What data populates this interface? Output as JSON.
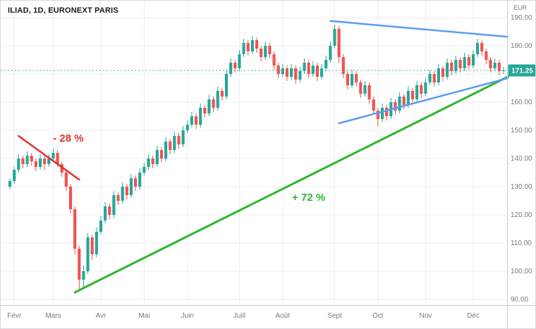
{
  "header": {
    "symbol_title": "ILIAD, 1D, EURONEXT PARIS",
    "currency_label": "EUR"
  },
  "colors": {
    "background": "#ffffff",
    "up": "#26a69a",
    "down": "#ef5350",
    "red": "#e03131",
    "green": "#2db52d",
    "blue": "#5b9cf6",
    "grid": "#ebedf0",
    "axis_text": "#787b86",
    "axis_line": "#c7cbd1",
    "last_price_bg": "#26a69a",
    "last_price_text": "#ffffff"
  },
  "chart_data": {
    "type": "candlestick",
    "symbol": "ILIAD",
    "interval": "1D",
    "exchange": "EURONEXT PARIS",
    "currency": "EUR",
    "last_price": 171.25,
    "last_price_label": "171.25",
    "y_axis": {
      "min": 88,
      "max": 193.5,
      "ticks": [
        {
          "value": 190,
          "label": "190.00"
        },
        {
          "value": 180,
          "label": "180.00"
        },
        {
          "value": 170,
          "label": "170.00"
        },
        {
          "value": 160,
          "label": "160.00"
        },
        {
          "value": 150,
          "label": "150.00"
        },
        {
          "value": 140,
          "label": "140.00"
        },
        {
          "value": 130,
          "label": "130.00"
        },
        {
          "value": 120,
          "label": "120.00"
        },
        {
          "value": 110,
          "label": "110.00"
        },
        {
          "value": 100,
          "label": "100.00"
        },
        {
          "value": 90,
          "label": "90.00"
        }
      ]
    },
    "x_axis": {
      "months": [
        {
          "label": "Févr",
          "index": 1
        },
        {
          "label": "Mars",
          "index": 10
        },
        {
          "label": "Avr",
          "index": 21
        },
        {
          "label": "Mai",
          "index": 31
        },
        {
          "label": "Juin",
          "index": 41
        },
        {
          "label": "Juill",
          "index": 53
        },
        {
          "label": "Août",
          "index": 63
        },
        {
          "label": "Sept",
          "index": 75
        },
        {
          "label": "Oct",
          "index": 85
        },
        {
          "label": "Nov",
          "index": 96
        },
        {
          "label": "Déc",
          "index": 107
        }
      ]
    },
    "candles": [
      [
        130,
        133,
        129,
        132
      ],
      [
        132,
        137,
        131,
        136
      ],
      [
        136,
        141.5,
        135,
        140
      ],
      [
        140,
        141,
        136.5,
        138
      ],
      [
        138,
        142.5,
        137,
        141
      ],
      [
        141,
        142,
        137.5,
        139
      ],
      [
        139,
        140,
        135.5,
        137
      ],
      [
        137,
        141.5,
        136,
        140
      ],
      [
        140,
        141,
        136,
        138
      ],
      [
        138,
        141.5,
        137,
        140
      ],
      [
        140,
        143.5,
        139,
        142
      ],
      [
        142,
        143,
        137,
        138
      ],
      [
        138,
        139,
        133.5,
        135
      ],
      [
        135,
        136,
        128.5,
        130
      ],
      [
        130,
        131,
        120.5,
        122
      ],
      [
        122,
        123,
        106,
        108
      ],
      [
        108,
        109,
        93,
        97
      ],
      [
        97,
        102,
        94.5,
        100
      ],
      [
        100,
        113.5,
        99,
        112
      ],
      [
        112,
        113,
        104,
        106
      ],
      [
        106,
        115.5,
        105,
        114
      ],
      [
        114,
        119.5,
        113,
        118
      ],
      [
        118,
        124.5,
        117,
        123
      ],
      [
        123,
        124,
        118.5,
        120
      ],
      [
        120,
        128.5,
        119,
        127
      ],
      [
        127,
        128,
        123.5,
        125
      ],
      [
        125,
        131.5,
        124,
        130
      ],
      [
        130,
        131,
        125.5,
        127
      ],
      [
        127,
        134.5,
        126,
        133
      ],
      [
        133,
        134,
        128.5,
        130
      ],
      [
        130,
        136.5,
        129,
        135
      ],
      [
        135,
        138.5,
        134,
        137
      ],
      [
        137,
        141.5,
        136,
        140
      ],
      [
        140,
        141,
        136.5,
        138
      ],
      [
        138,
        144.5,
        137,
        143
      ],
      [
        143,
        144,
        138.5,
        140
      ],
      [
        140,
        147.5,
        139,
        146
      ],
      [
        146,
        147,
        141.5,
        143
      ],
      [
        143,
        149.5,
        142,
        148
      ],
      [
        148,
        149,
        143.5,
        145
      ],
      [
        145,
        151.5,
        144,
        150
      ],
      [
        150,
        153.5,
        149,
        152
      ],
      [
        152,
        156.5,
        151,
        155
      ],
      [
        155,
        156,
        150.5,
        152
      ],
      [
        152,
        159.5,
        151,
        158
      ],
      [
        158,
        159,
        154.5,
        156
      ],
      [
        156,
        162.5,
        155,
        161
      ],
      [
        161,
        162,
        156.5,
        158
      ],
      [
        158,
        165.5,
        157,
        164
      ],
      [
        164,
        165,
        160.5,
        162
      ],
      [
        162,
        171.5,
        161,
        170
      ],
      [
        170,
        175.5,
        169,
        174
      ],
      [
        174,
        175,
        170.5,
        172
      ],
      [
        172,
        178.5,
        171,
        177
      ],
      [
        177,
        182.5,
        176,
        181
      ],
      [
        181,
        182,
        176.5,
        178
      ],
      [
        178,
        183.5,
        177,
        182
      ],
      [
        182,
        183,
        177.5,
        179
      ],
      [
        179,
        180,
        174.5,
        176
      ],
      [
        176,
        181.5,
        175,
        180
      ],
      [
        180,
        181,
        175.5,
        177
      ],
      [
        177,
        178,
        171.5,
        173
      ],
      [
        173,
        174,
        168.5,
        170
      ],
      [
        170,
        173.5,
        169,
        172
      ],
      [
        172,
        173,
        167.5,
        169
      ],
      [
        169,
        173.5,
        168,
        172
      ],
      [
        172,
        173,
        166.5,
        168
      ],
      [
        168,
        172.5,
        167,
        171
      ],
      [
        171,
        175.5,
        170,
        174
      ],
      [
        174,
        175,
        168.5,
        170
      ],
      [
        170,
        174.5,
        169,
        173
      ],
      [
        173,
        174,
        167.5,
        169
      ],
      [
        169,
        173.5,
        168,
        172
      ],
      [
        172,
        176.5,
        171,
        175
      ],
      [
        175,
        181.5,
        174,
        180
      ],
      [
        180,
        187.5,
        179,
        186
      ],
      [
        186,
        187,
        174,
        176
      ],
      [
        176,
        177,
        168.5,
        170
      ],
      [
        170,
        171,
        164.5,
        166
      ],
      [
        166,
        171.5,
        165,
        170
      ],
      [
        170,
        171,
        165.5,
        167
      ],
      [
        167,
        168,
        161.5,
        163
      ],
      [
        163,
        167.5,
        162,
        166
      ],
      [
        166,
        167,
        159.5,
        161
      ],
      [
        161,
        162,
        155.5,
        157
      ],
      [
        157,
        158,
        151.5,
        154
      ],
      [
        154,
        159.5,
        153,
        158
      ],
      [
        158,
        159,
        153.5,
        155
      ],
      [
        155,
        161.5,
        154,
        160
      ],
      [
        160,
        161,
        155.5,
        157
      ],
      [
        157,
        163.5,
        156,
        162
      ],
      [
        162,
        163,
        157.5,
        159
      ],
      [
        159,
        165.5,
        158,
        164
      ],
      [
        164,
        165,
        159.5,
        161
      ],
      [
        161,
        167.5,
        160,
        166
      ],
      [
        166,
        167,
        161.5,
        163
      ],
      [
        163,
        168.5,
        162,
        167
      ],
      [
        167,
        171.5,
        166,
        170
      ],
      [
        170,
        171,
        165.5,
        167
      ],
      [
        167,
        173.5,
        166,
        172
      ],
      [
        172,
        173,
        167.5,
        169
      ],
      [
        169,
        175.5,
        168,
        174
      ],
      [
        174,
        175,
        169.5,
        171
      ],
      [
        171,
        176.5,
        170,
        175
      ],
      [
        175,
        176,
        170.5,
        172
      ],
      [
        172,
        177.5,
        171,
        176
      ],
      [
        176,
        177,
        171.5,
        173
      ],
      [
        173,
        178.5,
        172,
        177
      ],
      [
        177,
        182.5,
        176,
        181
      ],
      [
        181,
        182,
        176.5,
        178
      ],
      [
        178,
        179,
        173.5,
        175
      ],
      [
        175,
        176,
        170.5,
        172
      ],
      [
        172,
        175.5,
        171,
        174
      ],
      [
        174,
        175,
        169.5,
        171
      ],
      [
        171,
        172.5,
        170,
        171.25
      ]
    ],
    "annotations": {
      "trendlines": [
        {
          "name": "decline-trendline",
          "color_key": "red",
          "from": [
            2.5,
            148
          ],
          "to": [
            15.5,
            132.5
          ],
          "width": 2.5
        },
        {
          "name": "rally-trendline",
          "color_key": "green",
          "from": [
            15.5,
            92.5
          ],
          "to": [
            114.5,
            169
          ],
          "width": 3
        },
        {
          "name": "triangle-upper-trendline",
          "color_key": "blue",
          "from": [
            74.5,
            188.8
          ],
          "to": [
            114.5,
            183.2
          ],
          "width": 2.5
        },
        {
          "name": "triangle-lower-trendline",
          "color_key": "blue",
          "from": [
            76.5,
            152.5
          ],
          "to": [
            114.5,
            168.5
          ],
          "width": 2.5
        }
      ],
      "labels": [
        {
          "name": "decline-percent-label",
          "text": "- 28 %",
          "at": [
            13.5,
            146
          ],
          "color_key": "red"
        },
        {
          "name": "rally-percent-label",
          "text": "+ 72 %",
          "at": [
            69,
            125
          ],
          "color_key": "green"
        }
      ]
    }
  }
}
